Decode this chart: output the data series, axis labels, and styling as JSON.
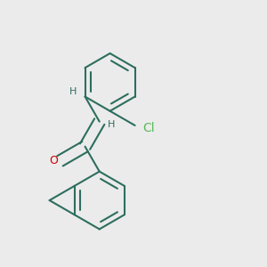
{
  "background_color": "#ebebeb",
  "bond_color": "#2d6e5e",
  "bond_width": 1.5,
  "atom_colors": {
    "O": "#cc0000",
    "Cl": "#5cb85c",
    "C": "#2d6e5e"
  },
  "font_size_atom": 9,
  "font_size_h": 8,
  "font_size_cl": 10
}
